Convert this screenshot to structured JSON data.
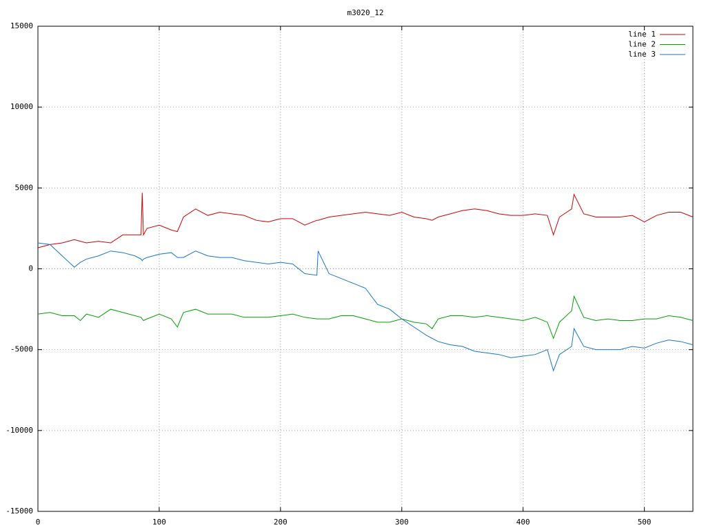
{
  "chart_data": {
    "type": "line",
    "title": "m3020_12",
    "x": [
      0,
      10,
      20,
      30,
      35,
      40,
      50,
      60,
      70,
      80,
      85,
      86,
      87,
      90,
      100,
      110,
      115,
      120,
      130,
      140,
      150,
      160,
      170,
      180,
      190,
      200,
      210,
      220,
      230,
      231,
      240,
      250,
      260,
      270,
      280,
      290,
      300,
      310,
      320,
      325,
      330,
      340,
      350,
      360,
      370,
      380,
      390,
      400,
      410,
      420,
      425,
      430,
      440,
      442,
      450,
      460,
      470,
      480,
      490,
      500,
      510,
      520,
      530,
      540
    ],
    "series": [
      {
        "name": "line 1",
        "color": "#d00000",
        "values": [
          1300,
          1500,
          1600,
          1800,
          1700,
          1600,
          1700,
          1600,
          2100,
          2100,
          2100,
          4700,
          2100,
          2500,
          2700,
          2400,
          2300,
          3200,
          3700,
          3300,
          3500,
          3400,
          3300,
          3000,
          2900,
          3100,
          3100,
          2700,
          3000,
          3000,
          3200,
          3300,
          3400,
          3500,
          3400,
          3300,
          3500,
          3200,
          3100,
          3000,
          3200,
          3400,
          3600,
          3700,
          3600,
          3400,
          3300,
          3300,
          3400,
          3300,
          2100,
          3200,
          3700,
          4600,
          3400,
          3200,
          3200,
          3200,
          3300,
          2900,
          3300,
          3500,
          3500,
          3200
        ]
      },
      {
        "name": "line 2",
        "color": "#00a000",
        "values": [
          -2800,
          -2700,
          -2900,
          -2900,
          -3200,
          -2800,
          -3000,
          -2500,
          -2700,
          -2900,
          -3000,
          -3100,
          -3200,
          -3100,
          -2800,
          -3100,
          -3600,
          -2700,
          -2500,
          -2800,
          -2800,
          -2800,
          -3000,
          -3000,
          -3000,
          -2900,
          -2800,
          -3000,
          -3100,
          -3100,
          -3100,
          -2900,
          -2900,
          -3100,
          -3300,
          -3300,
          -3100,
          -3300,
          -3400,
          -3700,
          -3100,
          -2900,
          -2900,
          -3000,
          -2900,
          -3000,
          -3100,
          -3200,
          -3000,
          -3300,
          -4300,
          -3300,
          -2600,
          -1700,
          -3000,
          -3200,
          -3100,
          -3200,
          -3200,
          -3100,
          -3100,
          -2900,
          -3000,
          -3200
        ]
      },
      {
        "name": "line 3",
        "color": "#1874cd",
        "values": [
          1600,
          1500,
          800,
          100,
          400,
          600,
          800,
          1100,
          1000,
          800,
          600,
          500,
          600,
          700,
          900,
          1000,
          700,
          700,
          1100,
          800,
          700,
          700,
          500,
          400,
          300,
          400,
          300,
          -300,
          -400,
          1100,
          -300,
          -600,
          -900,
          -1200,
          -2200,
          -2500,
          -3100,
          -3600,
          -4100,
          -4300,
          -4500,
          -4700,
          -4800,
          -5100,
          -5200,
          -5300,
          -5500,
          -5400,
          -5300,
          -5000,
          -6300,
          -5300,
          -4800,
          -3700,
          -4800,
          -5000,
          -5000,
          -5000,
          -4800,
          -4900,
          -4600,
          -4400,
          -4500,
          -4700
        ]
      }
    ],
    "xlim": [
      0,
      540
    ],
    "xticks": [
      0,
      100,
      200,
      300,
      400,
      500
    ],
    "ylim": [
      -15000,
      15000
    ],
    "yticks": [
      -15000,
      -10000,
      -5000,
      0,
      5000,
      10000,
      15000
    ],
    "grid": true,
    "legend": "top-right"
  }
}
